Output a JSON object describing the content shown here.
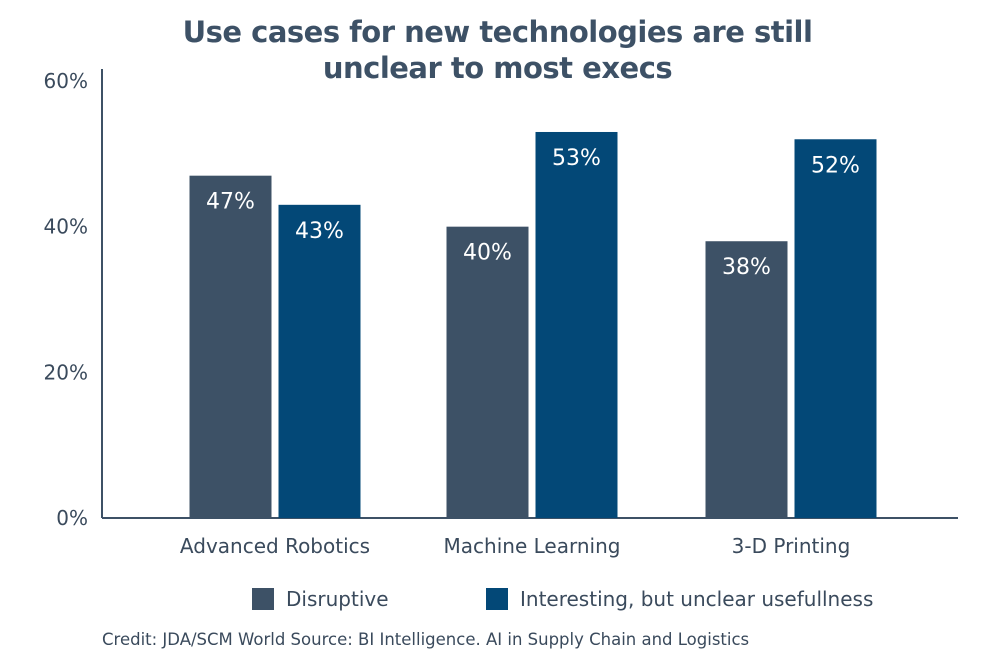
{
  "chart_data": {
    "type": "bar",
    "title_lines": [
      "Use cases for new technologies are still",
      "unclear to most execs"
    ],
    "categories": [
      "Advanced Robotics",
      "Machine Learning",
      "3-D Printing"
    ],
    "series": [
      {
        "name": "Disruptive",
        "values": [
          47,
          40,
          38
        ],
        "labels": [
          "47%",
          "40%",
          "38%"
        ],
        "color": "#3d5166"
      },
      {
        "name": "Interesting, but unclear usefullness",
        "values": [
          43,
          53,
          52
        ],
        "labels": [
          "43%",
          "53%",
          "52%"
        ],
        "color": "#034877"
      }
    ],
    "ylim": [
      0,
      60
    ],
    "yticks": [
      {
        "value": 0,
        "label": "0%"
      },
      {
        "value": 20,
        "label": "20%"
      },
      {
        "value": 40,
        "label": "40%"
      },
      {
        "value": 60,
        "label": "60%"
      }
    ],
    "grid": false,
    "legend_position": "bottom",
    "axis_color": "#3d5166",
    "data_label_color": "#ffffff"
  },
  "credit": "Credit: JDA/SCM World Source: BI Intelligence. AI in Supply Chain and Logistics"
}
